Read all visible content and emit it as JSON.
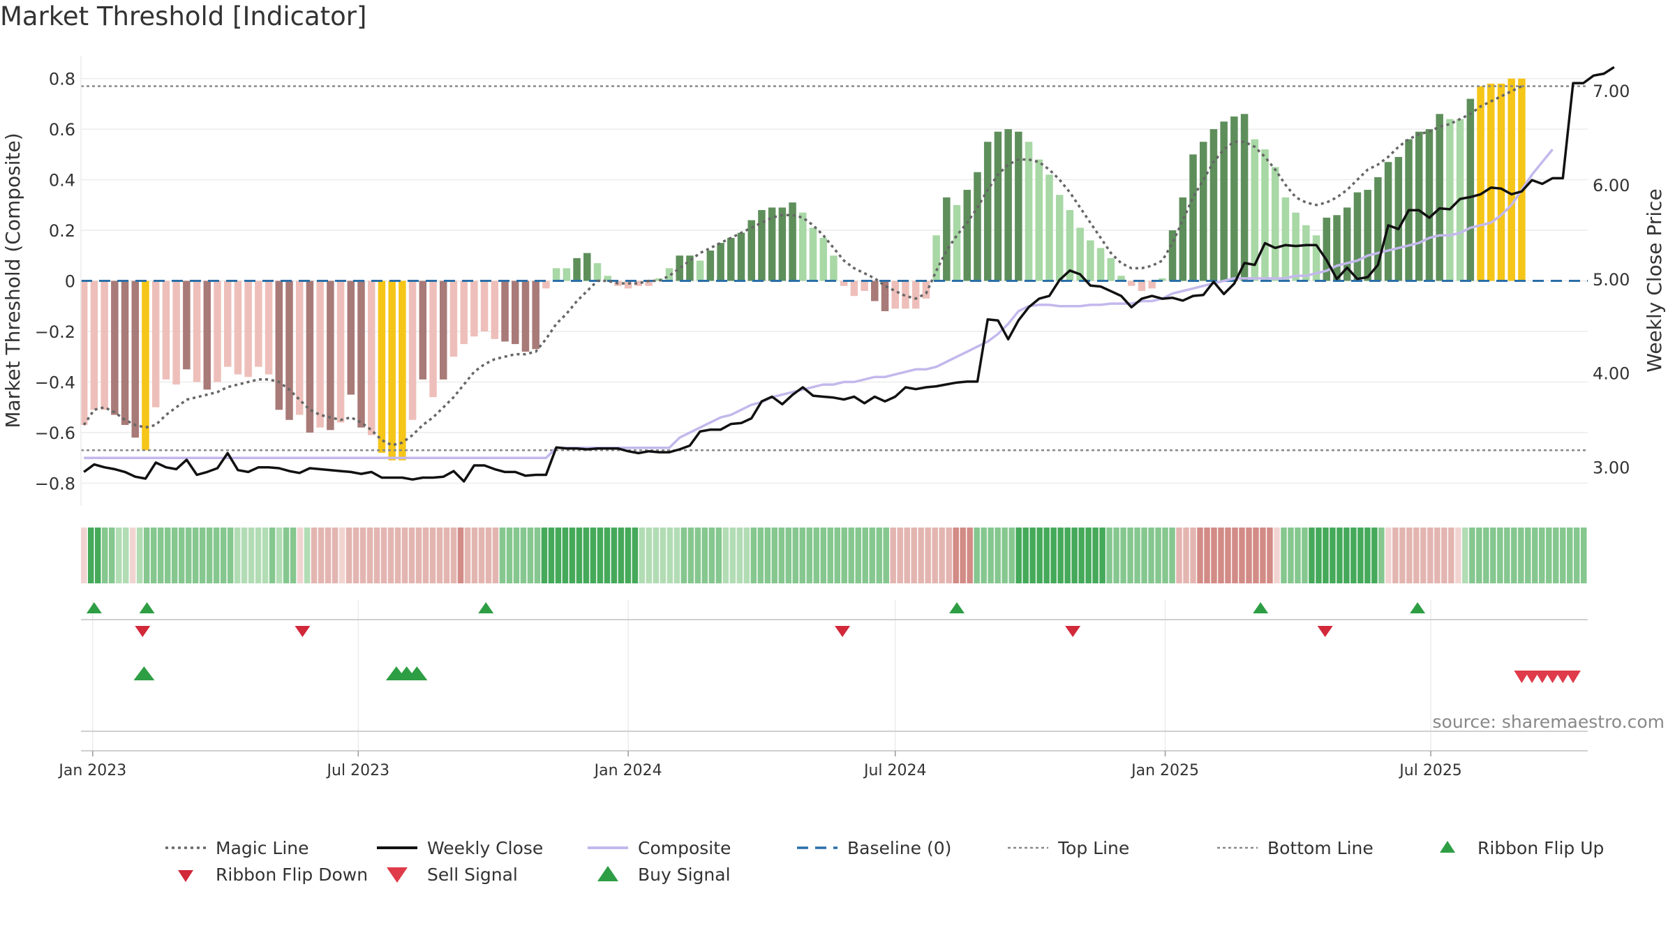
{
  "title": "Market Threshold [Indicator]",
  "source_note": "source: sharemaestro.com",
  "colors": {
    "magic_line": "#666666",
    "weekly_close": "#111111",
    "composite": "#c3b8ec",
    "baseline": "#2a6fa8",
    "top_bottom_line": "#888888",
    "signal_up": "#2e9e44",
    "signal_down": "#d1283a",
    "highlight_bar": "#f5c518",
    "pos_strong": "#5e8f5b",
    "pos_weak": "#a8d8a5",
    "neg_strong": "#a87a78",
    "neg_weak": "#eebfba"
  },
  "legend": [
    {
      "key": "magic_line",
      "label": "Magic Line"
    },
    {
      "key": "weekly_close",
      "label": "Weekly Close"
    },
    {
      "key": "composite",
      "label": "Composite"
    },
    {
      "key": "baseline",
      "label": "Baseline (0)"
    },
    {
      "key": "top_line",
      "label": "Top Line"
    },
    {
      "key": "bottom_line",
      "label": "Bottom Line"
    },
    {
      "key": "ribbon_flip_up",
      "label": "Ribbon Flip Up"
    },
    {
      "key": "ribbon_flip_down",
      "label": "Ribbon Flip Down"
    },
    {
      "key": "sell_signal",
      "label": "Sell Signal"
    },
    {
      "key": "buy_signal",
      "label": "Buy Signal"
    }
  ],
  "chart_data": {
    "type": "bar",
    "title": "Market Threshold [Indicator]",
    "ylabel": "Market Threshold (Composite)",
    "y2label": "Weekly Close Price",
    "ylim": [
      -0.89,
      0.89
    ],
    "y2lim": [
      2.59,
      7.37
    ],
    "yticks": [
      0.8,
      0.6,
      0.4,
      0.2,
      0,
      -0.2,
      -0.4,
      -0.6,
      -0.8
    ],
    "ytick_labels": [
      "0.8",
      "0.6",
      "0.4",
      "0.2",
      "0",
      "−0.2",
      "−0.4",
      "−0.6",
      "−0.8"
    ],
    "y2ticks": [
      7.0,
      6.0,
      5.0,
      4.0,
      3.0
    ],
    "y2tick_labels": [
      "7.00",
      "6.00",
      "5.00",
      "4.00",
      "3.00"
    ],
    "xlim": [
      "2022-12-24",
      "2025-10-16"
    ],
    "xticks": [
      "2023-01-01",
      "2023-07-01",
      "2024-01-01",
      "2024-07-01",
      "2025-01-01",
      "2025-07-01"
    ],
    "xtick_labels": [
      "Jan 2023",
      "Jul 2023",
      "Jan 2024",
      "Jul 2024",
      "Jan 2025",
      "Jul 2025"
    ],
    "grid": true,
    "legend_position": "bottom",
    "top_line": 0.77,
    "bottom_line": -0.67,
    "baseline": 0,
    "first_week": "2022-12-26",
    "week_step_days": 7,
    "composite_bars": [
      -0.57,
      -0.51,
      -0.51,
      -0.53,
      -0.57,
      -0.62,
      -0.67,
      -0.5,
      -0.39,
      -0.41,
      -0.35,
      -0.4,
      -0.43,
      -0.4,
      -0.34,
      -0.37,
      -0.38,
      -0.34,
      -0.37,
      -0.51,
      -0.55,
      -0.53,
      -0.6,
      -0.58,
      -0.59,
      -0.56,
      -0.45,
      -0.58,
      -0.61,
      -0.68,
      -0.71,
      -0.71,
      -0.55,
      -0.39,
      -0.46,
      -0.39,
      -0.3,
      -0.25,
      -0.22,
      -0.2,
      -0.23,
      -0.24,
      -0.25,
      -0.28,
      -0.27,
      -0.03,
      0.05,
      0.05,
      0.09,
      0.11,
      0.07,
      0.02,
      -0.02,
      -0.03,
      -0.02,
      -0.02,
      0.01,
      0.05,
      0.1,
      0.1,
      0.08,
      0.12,
      0.15,
      0.17,
      0.19,
      0.24,
      0.28,
      0.29,
      0.29,
      0.31,
      0.27,
      0.21,
      0.17,
      0.1,
      -0.02,
      -0.06,
      -0.04,
      -0.08,
      -0.12,
      -0.11,
      -0.11,
      -0.11,
      -0.07,
      0.18,
      0.33,
      0.3,
      0.36,
      0.43,
      0.55,
      0.59,
      0.6,
      0.59,
      0.55,
      0.48,
      0.42,
      0.34,
      0.28,
      0.21,
      0.16,
      0.13,
      0.09,
      0.02,
      -0.02,
      -0.04,
      -0.03,
      0.01,
      0.2,
      0.33,
      0.5,
      0.55,
      0.6,
      0.63,
      0.65,
      0.66,
      0.56,
      0.52,
      0.45,
      0.33,
      0.27,
      0.22,
      0.18,
      0.25,
      0.26,
      0.29,
      0.35,
      0.36,
      0.41,
      0.47,
      0.49,
      0.56,
      0.59,
      0.6,
      0.66,
      0.64,
      0.64,
      0.72,
      0.77,
      0.78,
      0.78,
      0.8,
      0.8
    ],
    "composite_bar_shades": [
      "nw",
      "nw",
      "nw",
      "ns",
      "ns",
      "ns",
      "hi",
      "nw",
      "nw",
      "nw",
      "ns",
      "nw",
      "ns",
      "nw",
      "nw",
      "nw",
      "nw",
      "nw",
      "nw",
      "ns",
      "ns",
      "nw",
      "ns",
      "nw",
      "ns",
      "nw",
      "ns",
      "ns",
      "nw",
      "hi",
      "hi",
      "hi",
      "nw",
      "ns",
      "nw",
      "ns",
      "nw",
      "nw",
      "nw",
      "nw",
      "nw",
      "ns",
      "ns",
      "ns",
      "ns",
      "nw",
      "pw",
      "pw",
      "ps",
      "ps",
      "pw",
      "pw",
      "nw",
      "nw",
      "nw",
      "nw",
      "pw",
      "pw",
      "ps",
      "ps",
      "pw",
      "ps",
      "ps",
      "ps",
      "ps",
      "ps",
      "ps",
      "ps",
      "ps",
      "ps",
      "pw",
      "pw",
      "pw",
      "pw",
      "nw",
      "nw",
      "nw",
      "ns",
      "ns",
      "nw",
      "nw",
      "nw",
      "nw",
      "pw",
      "ps",
      "pw",
      "ps",
      "ps",
      "ps",
      "ps",
      "ps",
      "ps",
      "pw",
      "pw",
      "pw",
      "pw",
      "pw",
      "pw",
      "pw",
      "pw",
      "pw",
      "pw",
      "nw",
      "nw",
      "nw",
      "pw",
      "ps",
      "ps",
      "ps",
      "ps",
      "ps",
      "ps",
      "ps",
      "ps",
      "pw",
      "pw",
      "pw",
      "pw",
      "pw",
      "pw",
      "pw",
      "ps",
      "ps",
      "ps",
      "ps",
      "ps",
      "ps",
      "ps",
      "ps",
      "ps",
      "ps",
      "ps",
      "ps",
      "pw",
      "pw",
      "ps",
      "hi",
      "hi",
      "hi",
      "hi",
      "hi"
    ],
    "weekly_close": [
      2.95,
      3.03,
      3.0,
      2.98,
      2.95,
      2.9,
      2.88,
      3.05,
      3.0,
      2.98,
      3.08,
      2.92,
      2.95,
      2.99,
      3.15,
      2.97,
      2.95,
      3.0,
      3.0,
      2.99,
      2.96,
      2.94,
      2.99,
      2.98,
      2.97,
      2.96,
      2.95,
      2.93,
      2.95,
      2.89,
      2.89,
      2.89,
      2.87,
      2.89,
      2.89,
      2.9,
      2.96,
      2.85,
      3.02,
      3.02,
      2.98,
      2.95,
      2.95,
      2.91,
      2.92,
      2.92,
      3.21,
      3.2,
      3.2,
      3.19,
      3.2,
      3.2,
      3.2,
      3.17,
      3.15,
      3.17,
      3.16,
      3.16,
      3.19,
      3.23,
      3.38,
      3.4,
      3.4,
      3.46,
      3.47,
      3.52,
      3.7,
      3.75,
      3.67,
      3.77,
      3.85,
      3.76,
      3.75,
      3.74,
      3.72,
      3.75,
      3.68,
      3.75,
      3.7,
      3.75,
      3.85,
      3.83,
      3.85,
      3.86,
      3.88,
      3.9,
      3.91,
      3.91,
      4.57,
      4.56,
      4.36,
      4.56,
      4.7,
      4.79,
      4.82,
      4.99,
      5.09,
      5.05,
      4.93,
      4.92,
      4.87,
      4.82,
      4.7,
      4.79,
      4.82,
      4.79,
      4.8,
      4.77,
      4.82,
      4.83,
      4.97,
      4.84,
      4.95,
      5.17,
      5.15,
      5.38,
      5.33,
      5.36,
      5.35,
      5.36,
      5.36,
      5.2,
      5.0,
      5.12,
      5.0,
      5.02,
      5.15,
      5.57,
      5.53,
      5.73,
      5.73,
      5.65,
      5.75,
      5.74,
      5.85,
      5.87,
      5.9,
      5.97,
      5.96,
      5.9,
      5.93,
      6.05,
      6.01,
      6.07,
      6.07,
      7.08,
      7.08,
      7.16,
      7.18,
      7.25
    ],
    "composite_line": [
      -0.7,
      -0.7,
      -0.7,
      -0.7,
      -0.7,
      -0.7,
      -0.7,
      -0.7,
      -0.7,
      -0.7,
      -0.7,
      -0.7,
      -0.7,
      -0.7,
      -0.7,
      -0.7,
      -0.7,
      -0.7,
      -0.7,
      -0.7,
      -0.7,
      -0.7,
      -0.7,
      -0.7,
      -0.7,
      -0.7,
      -0.7,
      -0.7,
      -0.7,
      -0.7,
      -0.7,
      -0.7,
      -0.7,
      -0.7,
      -0.7,
      -0.7,
      -0.7,
      -0.7,
      -0.7,
      -0.7,
      -0.7,
      -0.7,
      -0.7,
      -0.7,
      -0.7,
      -0.7,
      -0.66,
      -0.66,
      -0.66,
      -0.66,
      -0.66,
      -0.66,
      -0.66,
      -0.66,
      -0.66,
      -0.66,
      -0.66,
      -0.66,
      -0.62,
      -0.6,
      -0.58,
      -0.56,
      -0.54,
      -0.53,
      -0.51,
      -0.49,
      -0.48,
      -0.46,
      -0.45,
      -0.44,
      -0.43,
      -0.42,
      -0.41,
      -0.41,
      -0.4,
      -0.4,
      -0.39,
      -0.38,
      -0.38,
      -0.37,
      -0.36,
      -0.35,
      -0.35,
      -0.34,
      -0.32,
      -0.3,
      -0.28,
      -0.26,
      -0.24,
      -0.21,
      -0.17,
      -0.12,
      -0.1,
      -0.095,
      -0.095,
      -0.1,
      -0.1,
      -0.1,
      -0.095,
      -0.095,
      -0.09,
      -0.09,
      -0.09,
      -0.08,
      -0.08,
      -0.07,
      -0.05,
      -0.04,
      -0.03,
      -0.02,
      -0.01,
      0,
      0.01,
      0.01,
      0.01,
      0.01,
      0.01,
      0.01,
      0.02,
      0.02,
      0.03,
      0.04,
      0.06,
      0.07,
      0.08,
      0.1,
      0.11,
      0.12,
      0.13,
      0.14,
      0.15,
      0.17,
      0.18,
      0.18,
      0.19,
      0.21,
      0.22,
      0.23,
      0.26,
      0.3,
      0.36,
      0.42,
      0.47,
      0.52
    ],
    "magic_line": [
      -0.57,
      -0.51,
      -0.5,
      -0.52,
      -0.55,
      -0.57,
      -0.58,
      -0.57,
      -0.53,
      -0.5,
      -0.47,
      -0.46,
      -0.45,
      -0.44,
      -0.42,
      -0.41,
      -0.4,
      -0.39,
      -0.39,
      -0.4,
      -0.43,
      -0.47,
      -0.51,
      -0.53,
      -0.54,
      -0.55,
      -0.54,
      -0.56,
      -0.59,
      -0.63,
      -0.65,
      -0.64,
      -0.61,
      -0.57,
      -0.54,
      -0.5,
      -0.46,
      -0.41,
      -0.36,
      -0.33,
      -0.31,
      -0.3,
      -0.29,
      -0.29,
      -0.28,
      -0.23,
      -0.17,
      -0.13,
      -0.08,
      -0.04,
      0.0,
      0.0,
      -0.01,
      -0.01,
      -0.01,
      0.0,
      0.0,
      0.02,
      0.05,
      0.08,
      0.11,
      0.13,
      0.15,
      0.17,
      0.19,
      0.21,
      0.23,
      0.25,
      0.26,
      0.26,
      0.25,
      0.22,
      0.18,
      0.13,
      0.08,
      0.05,
      0.03,
      0.01,
      -0.02,
      -0.04,
      -0.06,
      -0.07,
      -0.05,
      0.04,
      0.12,
      0.18,
      0.23,
      0.29,
      0.36,
      0.42,
      0.46,
      0.48,
      0.48,
      0.47,
      0.44,
      0.4,
      0.35,
      0.29,
      0.23,
      0.17,
      0.11,
      0.07,
      0.05,
      0.05,
      0.06,
      0.08,
      0.15,
      0.24,
      0.33,
      0.4,
      0.47,
      0.52,
      0.55,
      0.55,
      0.53,
      0.49,
      0.44,
      0.38,
      0.33,
      0.31,
      0.3,
      0.31,
      0.33,
      0.36,
      0.4,
      0.44,
      0.46,
      0.49,
      0.53,
      0.56,
      0.58,
      0.59,
      0.61,
      0.62,
      0.64,
      0.66,
      0.69,
      0.71,
      0.73,
      0.75,
      0.77
    ],
    "ribbon_shades": [
      "pl",
      "gd",
      "gd",
      "gm",
      "gm",
      "gl",
      "gl",
      "pl",
      "gl",
      "gm",
      "gm",
      "gm",
      "gm",
      "gm",
      "gm",
      "gm",
      "gm",
      "gm",
      "gm",
      "gm",
      "gm",
      "gm",
      "gl",
      "gl",
      "gl",
      "gl",
      "gl",
      "gm",
      "gl",
      "gm",
      "gm",
      "pl",
      "gl",
      "pm",
      "pm",
      "pm",
      "pm",
      "pl",
      "pm",
      "pm",
      "pm",
      "pm",
      "pm",
      "pm",
      "pm",
      "pm",
      "pm",
      "pm",
      "pm",
      "pm",
      "pm",
      "pm",
      "pm",
      "pm",
      "pd",
      "pm",
      "pm",
      "pm",
      "pm",
      "pm",
      "gm",
      "gm",
      "gm",
      "gm",
      "gm",
      "gm",
      "gd",
      "gd",
      "gd",
      "gd",
      "gd",
      "gd",
      "gd",
      "gd",
      "gd",
      "gd",
      "gd",
      "gd",
      "gd",
      "gd",
      "gl",
      "gl",
      "gl",
      "gl",
      "gl",
      "gl",
      "gm",
      "gm",
      "gm",
      "gm",
      "gm",
      "gm",
      "gl",
      "gl",
      "gl",
      "gl",
      "gm",
      "gm",
      "gm",
      "gm",
      "gm",
      "gm",
      "gm",
      "gm",
      "gm",
      "gm",
      "gm",
      "gm",
      "gm",
      "gm",
      "gm",
      "gm",
      "gm",
      "gm",
      "gm",
      "gm",
      "pm",
      "pm",
      "pm",
      "pm",
      "pm",
      "pm",
      "pm",
      "pm",
      "pm",
      "pd",
      "pd",
      "pd",
      "gm",
      "gm",
      "gm",
      "gm",
      "gm",
      "gm",
      "gd",
      "gd",
      "gd",
      "gd",
      "gd",
      "gd",
      "gd",
      "gd",
      "gd",
      "gd",
      "gd",
      "gd",
      "gd",
      "gm",
      "gm",
      "gm",
      "gm",
      "gm",
      "gm",
      "gm",
      "gm",
      "gm",
      "gm",
      "pm",
      "pm",
      "pm",
      "pd",
      "pd",
      "pd",
      "pd",
      "pd",
      "pd",
      "pd",
      "pd",
      "pd",
      "pd",
      "pd",
      "pl",
      "gm",
      "gm",
      "gm",
      "gm",
      "gd",
      "gd",
      "gd",
      "gd",
      "gd",
      "gd",
      "gd",
      "gd",
      "gd",
      "gd",
      "gm",
      "pl",
      "pm",
      "pm",
      "pm",
      "pm",
      "pm",
      "pm",
      "pm",
      "pm",
      "pm",
      "pl",
      "gl",
      "gm",
      "gm",
      "gm",
      "gm",
      "gm",
      "gm",
      "gm",
      "gm",
      "gm",
      "gm",
      "gm",
      "gm",
      "gm",
      "gm",
      "gm",
      "gm",
      "gm"
    ],
    "ribbon_flip_up": [
      "2023-01-02",
      "2023-02-07",
      "2023-09-26",
      "2024-08-12",
      "2025-03-07",
      "2025-06-22"
    ],
    "ribbon_flip_down": [
      "2023-02-04",
      "2023-05-24",
      "2024-05-26",
      "2024-10-30",
      "2025-04-20"
    ],
    "buy_signal": [
      "2023-02-05",
      "2023-07-27",
      "2023-08-03",
      "2023-08-10"
    ],
    "sell_signal": [
      "2025-09-01",
      "2025-09-08",
      "2025-09-15",
      "2025-09-22",
      "2025-09-29",
      "2025-10-06"
    ]
  }
}
